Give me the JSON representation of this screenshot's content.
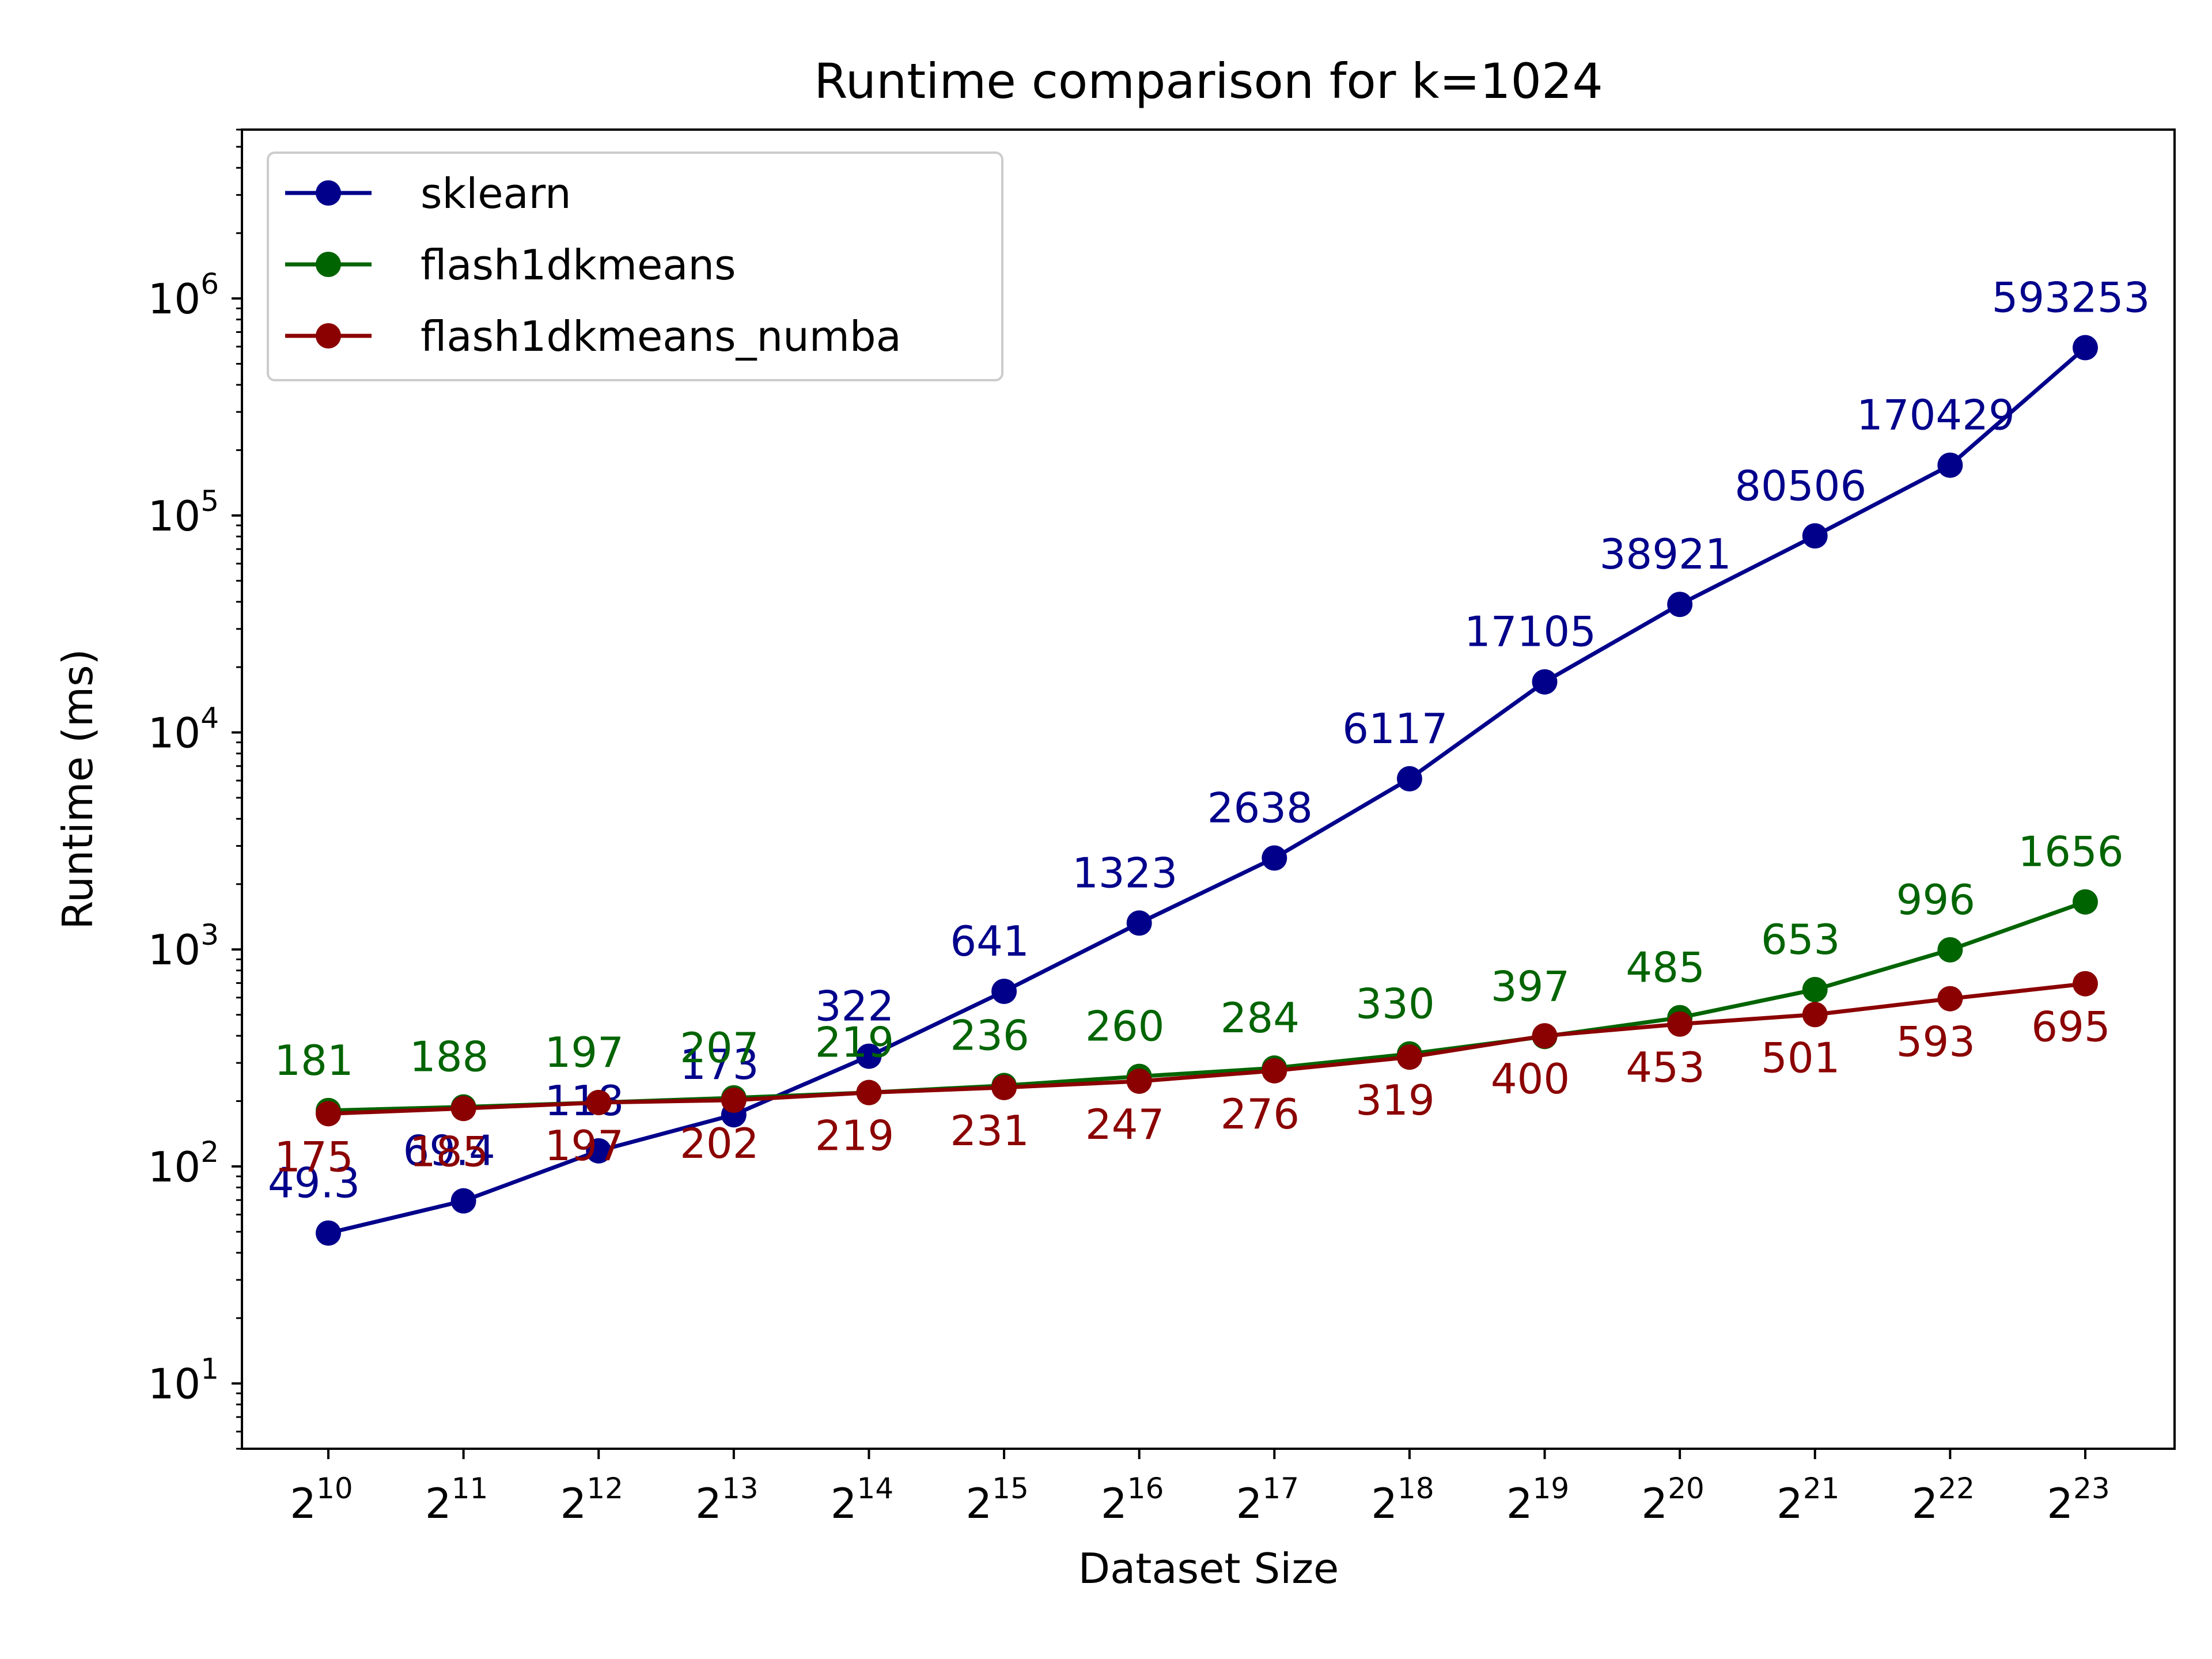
{
  "chart_data": {
    "type": "line",
    "title": "Runtime comparison for k=1024",
    "xlabel": "Dataset Size",
    "ylabel": "Runtime (ms)",
    "x_scale": "log2",
    "y_scale": "log10",
    "x": [
      1024,
      2048,
      4096,
      8192,
      16384,
      32768,
      65536,
      131072,
      262144,
      524288,
      1048576,
      2097152,
      4194304,
      8388608
    ],
    "x_tick_labels": [
      {
        "base": "2",
        "exp": "10"
      },
      {
        "base": "2",
        "exp": "11"
      },
      {
        "base": "2",
        "exp": "12"
      },
      {
        "base": "2",
        "exp": "13"
      },
      {
        "base": "2",
        "exp": "14"
      },
      {
        "base": "2",
        "exp": "15"
      },
      {
        "base": "2",
        "exp": "16"
      },
      {
        "base": "2",
        "exp": "17"
      },
      {
        "base": "2",
        "exp": "18"
      },
      {
        "base": "2",
        "exp": "19"
      },
      {
        "base": "2",
        "exp": "20"
      },
      {
        "base": "2",
        "exp": "21"
      },
      {
        "base": "2",
        "exp": "22"
      },
      {
        "base": "2",
        "exp": "23"
      }
    ],
    "y_ticks": [
      {
        "value": 10,
        "base": "10",
        "exp": "1"
      },
      {
        "value": 100,
        "base": "10",
        "exp": "2"
      },
      {
        "value": 1000,
        "base": "10",
        "exp": "3"
      },
      {
        "value": 10000,
        "base": "10",
        "exp": "4"
      },
      {
        "value": 100000,
        "base": "10",
        "exp": "5"
      },
      {
        "value": 1000000,
        "base": "10",
        "exp": "6"
      }
    ],
    "ylim": [
      5,
      6000000
    ],
    "grid": false,
    "legend_position": "top-left",
    "series": [
      {
        "name": "sklearn",
        "color": "#00008b",
        "values": [
          49.3,
          69.4,
          118,
          173,
          322,
          641,
          1323,
          2638,
          6117,
          17105,
          38921,
          80506,
          170429,
          593253
        ],
        "labels": [
          "49.3",
          "69.4",
          "118",
          "173",
          "322",
          "641",
          "1323",
          "2638",
          "6117",
          "17105",
          "38921",
          "80506",
          "170429",
          "593253"
        ],
        "label_side": "above"
      },
      {
        "name": "flash1dkmeans",
        "color": "#006400",
        "values": [
          181,
          188,
          197,
          207,
          219,
          236,
          260,
          284,
          330,
          397,
          485,
          653,
          996,
          1656
        ],
        "labels": [
          "181",
          "188",
          "197",
          "207",
          "219",
          "236",
          "260",
          "284",
          "330",
          "397",
          "485",
          "653",
          "996",
          "1656"
        ],
        "label_side": "above"
      },
      {
        "name": "flash1dkmeans_numba",
        "color": "#8b0000",
        "values": [
          175,
          185,
          197,
          202,
          219,
          231,
          247,
          276,
          319,
          400,
          453,
          501,
          593,
          695
        ],
        "labels": [
          "175",
          "185",
          "197",
          "202",
          "219",
          "231",
          "247",
          "276",
          "319",
          "400",
          "453",
          "501",
          "593",
          "695"
        ],
        "label_side": "below"
      }
    ]
  }
}
